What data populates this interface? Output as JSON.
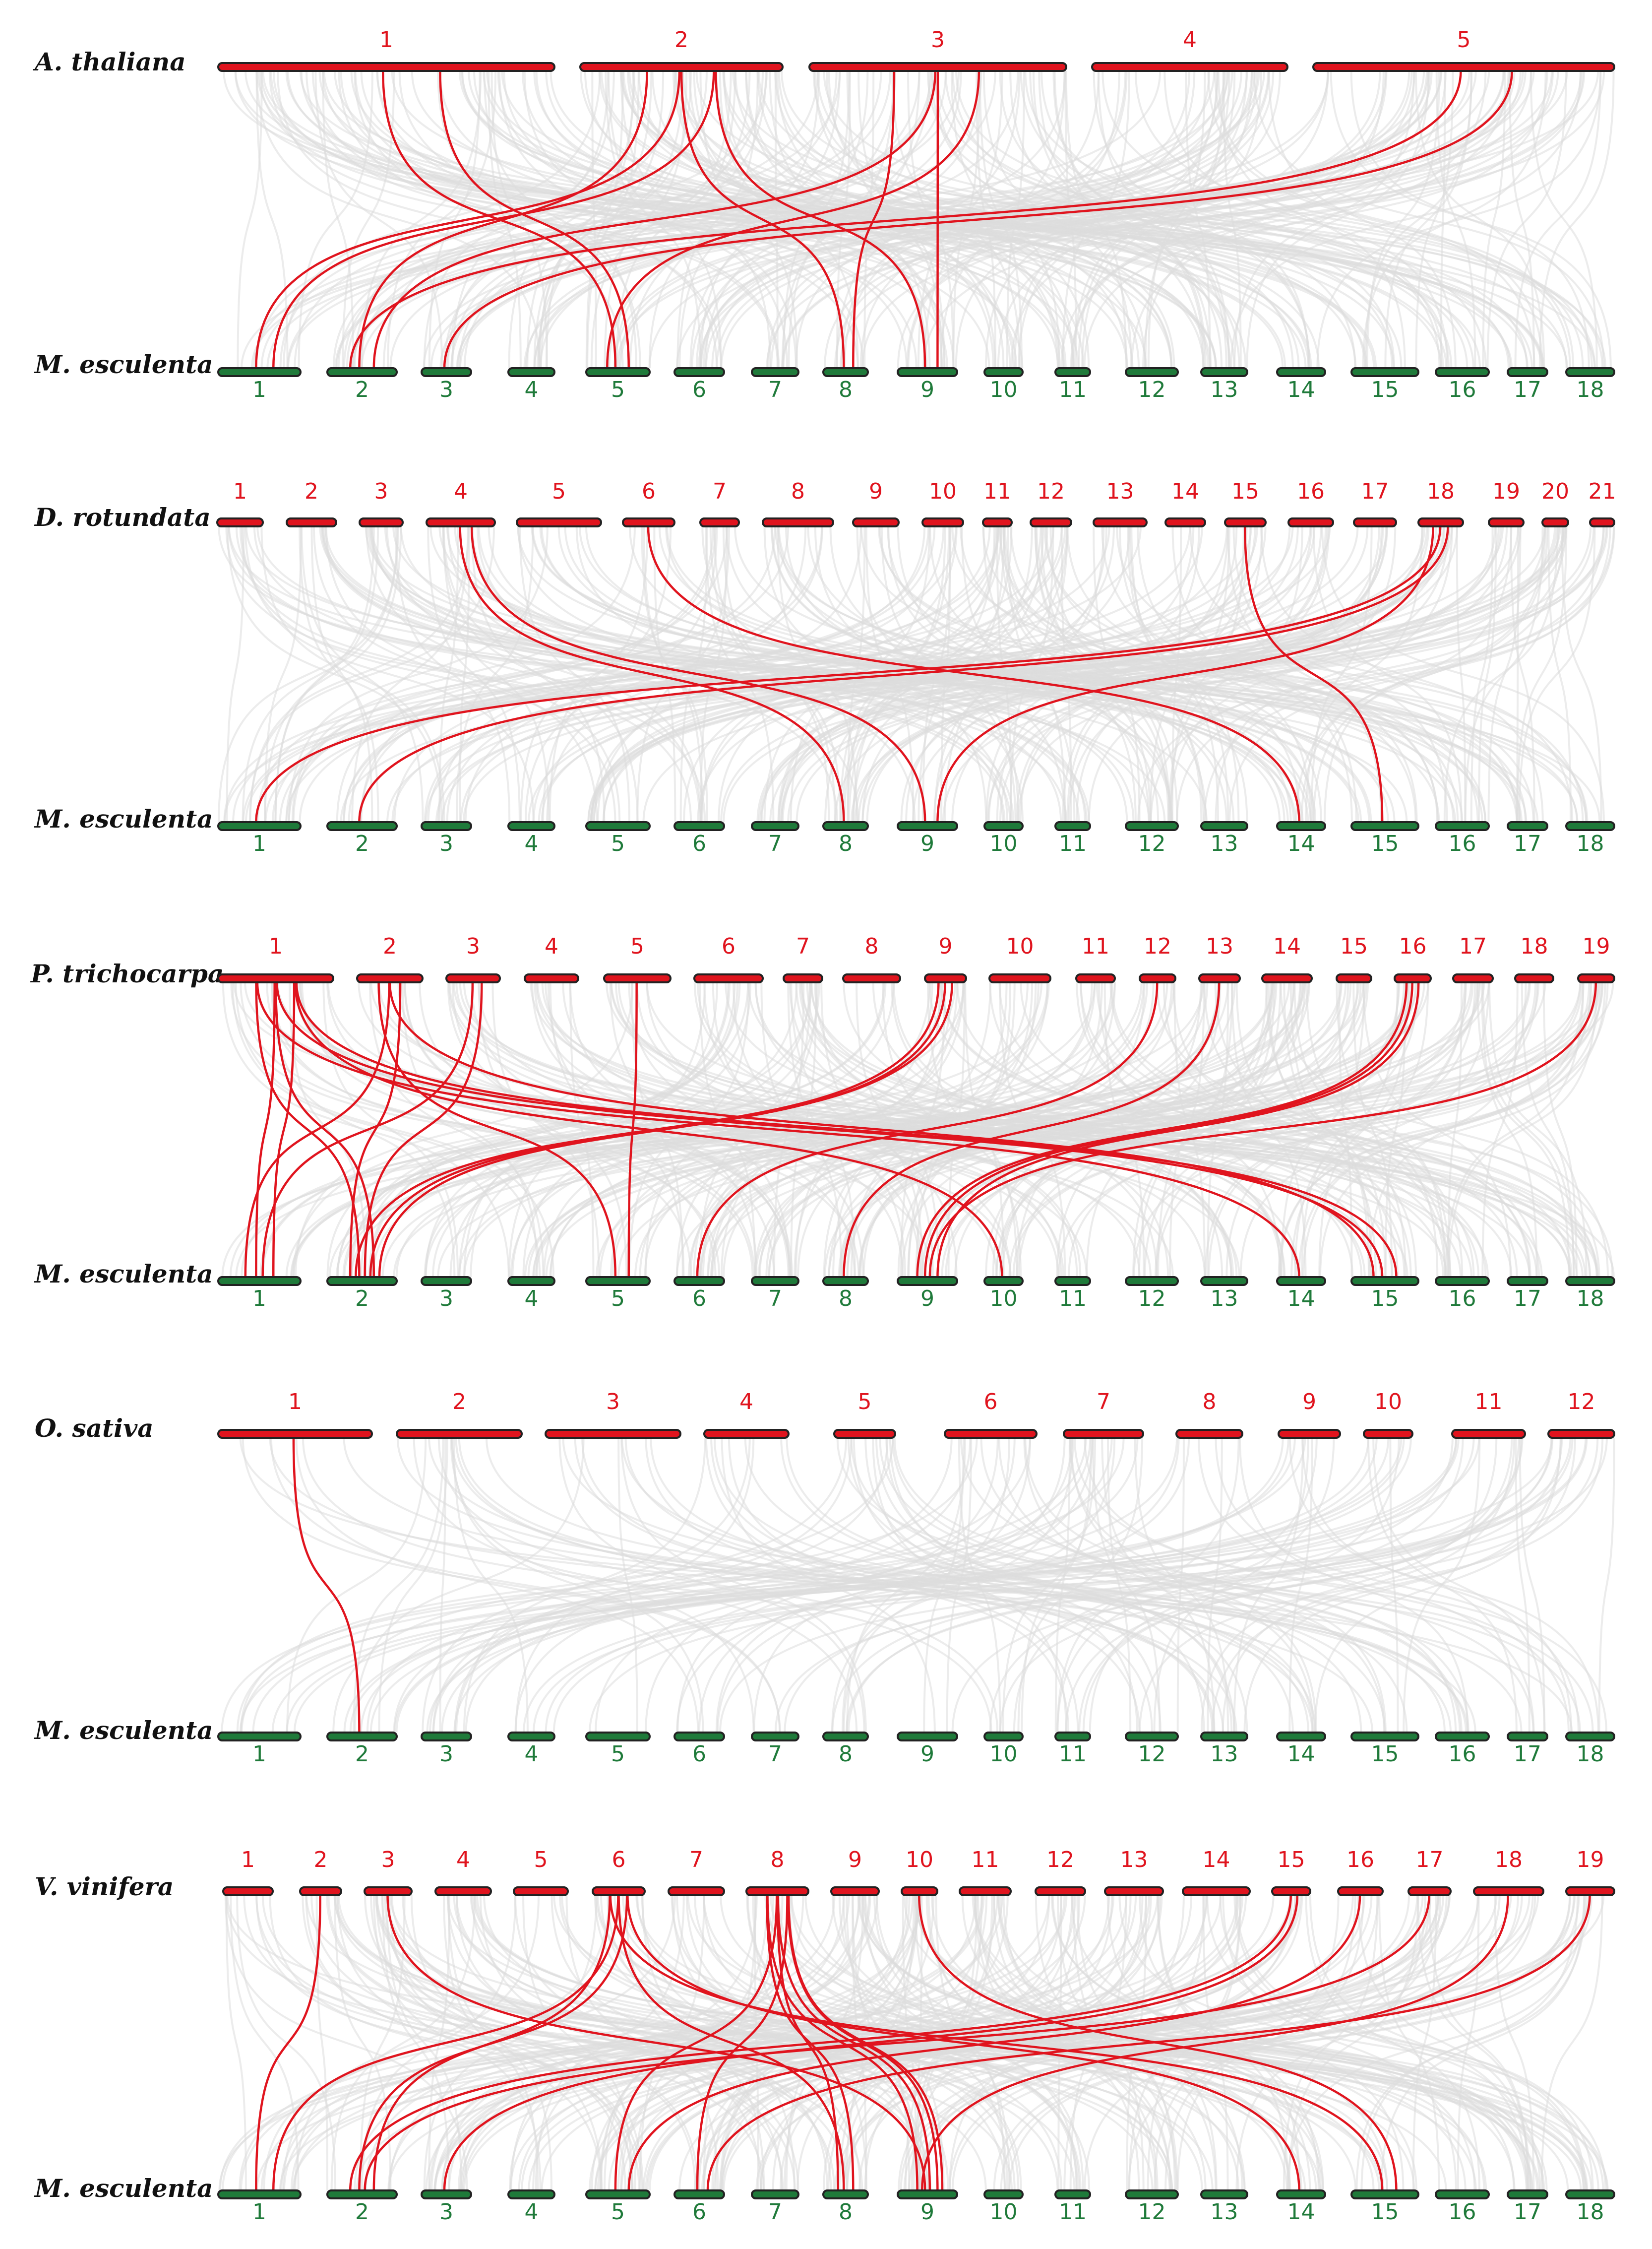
{
  "colors": {
    "top_genome": "#e0141e",
    "bottom_genome": "#1f7a3a",
    "background_links": "#dcdcdc",
    "highlight_links": "#e0141e"
  },
  "panels": [
    {
      "id": "athaliana",
      "top_species": "A. thaliana",
      "bottom_species": "M. esculenta",
      "top_chromosomes": [
        "1",
        "2",
        "3",
        "4",
        "5"
      ],
      "bottom_chromosomes": [
        "1",
        "2",
        "3",
        "4",
        "5",
        "6",
        "7",
        "8",
        "9",
        "10",
        "11",
        "12",
        "13",
        "14",
        "15",
        "16",
        "17",
        "18"
      ],
      "highlighted_links": [
        {
          "top": "1",
          "bottom": "5"
        },
        {
          "top": "1",
          "bottom": "5"
        },
        {
          "top": "2",
          "bottom": "1"
        },
        {
          "top": "2",
          "bottom": "1"
        },
        {
          "top": "2",
          "bottom": "2"
        },
        {
          "top": "2",
          "bottom": "8"
        },
        {
          "top": "2",
          "bottom": "9"
        },
        {
          "top": "3",
          "bottom": "2"
        },
        {
          "top": "3",
          "bottom": "5"
        },
        {
          "top": "3",
          "bottom": "8"
        },
        {
          "top": "3",
          "bottom": "9"
        },
        {
          "top": "5",
          "bottom": "2"
        },
        {
          "top": "5",
          "bottom": "3"
        }
      ]
    },
    {
      "id": "drotundata",
      "top_species": "D. rotundata",
      "bottom_species": "M. esculenta",
      "top_chromosomes": [
        "1",
        "2",
        "3",
        "4",
        "5",
        "6",
        "7",
        "8",
        "9",
        "10",
        "11",
        "12",
        "13",
        "14",
        "15",
        "16",
        "17",
        "18",
        "19",
        "20",
        "21"
      ],
      "bottom_chromosomes": [
        "1",
        "2",
        "3",
        "4",
        "5",
        "6",
        "7",
        "8",
        "9",
        "10",
        "11",
        "12",
        "13",
        "14",
        "15",
        "16",
        "17",
        "18"
      ],
      "highlighted_links": [
        {
          "top": "4",
          "bottom": "8"
        },
        {
          "top": "4",
          "bottom": "9"
        },
        {
          "top": "6",
          "bottom": "14"
        },
        {
          "top": "15",
          "bottom": "15"
        },
        {
          "top": "18",
          "bottom": "1"
        },
        {
          "top": "18",
          "bottom": "2"
        },
        {
          "top": "18",
          "bottom": "9"
        }
      ]
    },
    {
      "id": "ptrichocarpa",
      "top_species": "P. trichocarpa",
      "bottom_species": "M. esculenta",
      "top_chromosomes": [
        "1",
        "2",
        "3",
        "4",
        "5",
        "6",
        "7",
        "8",
        "9",
        "10",
        "11",
        "12",
        "13",
        "14",
        "15",
        "16",
        "17",
        "18",
        "19"
      ],
      "bottom_chromosomes": [
        "1",
        "2",
        "3",
        "4",
        "5",
        "6",
        "7",
        "8",
        "9",
        "10",
        "11",
        "12",
        "13",
        "14",
        "15",
        "16",
        "17",
        "18"
      ],
      "highlighted_links": [
        {
          "top": "1",
          "bottom": "1"
        },
        {
          "top": "1",
          "bottom": "1"
        },
        {
          "top": "1",
          "bottom": "2"
        },
        {
          "top": "1",
          "bottom": "2"
        },
        {
          "top": "1",
          "bottom": "10"
        },
        {
          "top": "1",
          "bottom": "14"
        },
        {
          "top": "1",
          "bottom": "15"
        },
        {
          "top": "1",
          "bottom": "15"
        },
        {
          "top": "2",
          "bottom": "1"
        },
        {
          "top": "2",
          "bottom": "2"
        },
        {
          "top": "2",
          "bottom": "5"
        },
        {
          "top": "2",
          "bottom": "15"
        },
        {
          "top": "3",
          "bottom": "1"
        },
        {
          "top": "3",
          "bottom": "2"
        },
        {
          "top": "5",
          "bottom": "5"
        },
        {
          "top": "9",
          "bottom": "2"
        },
        {
          "top": "9",
          "bottom": "2"
        },
        {
          "top": "9",
          "bottom": "2"
        },
        {
          "top": "12",
          "bottom": "6"
        },
        {
          "top": "13",
          "bottom": "8"
        },
        {
          "top": "16",
          "bottom": "9"
        },
        {
          "top": "16",
          "bottom": "9"
        },
        {
          "top": "16",
          "bottom": "9"
        },
        {
          "top": "19",
          "bottom": "9"
        }
      ]
    },
    {
      "id": "osativa",
      "top_species": "O. sativa",
      "bottom_species": "M. esculenta",
      "top_chromosomes": [
        "1",
        "2",
        "3",
        "4",
        "5",
        "6",
        "7",
        "8",
        "9",
        "10",
        "11",
        "12"
      ],
      "bottom_chromosomes": [
        "1",
        "2",
        "3",
        "4",
        "5",
        "6",
        "7",
        "8",
        "9",
        "10",
        "11",
        "12",
        "13",
        "14",
        "15",
        "16",
        "17",
        "18"
      ],
      "highlighted_links": [
        {
          "top": "1",
          "bottom": "2"
        }
      ]
    },
    {
      "id": "vvinifera",
      "top_species": "V. vinifera",
      "bottom_species": "M. esculenta",
      "top_chromosomes": [
        "1",
        "2",
        "3",
        "4",
        "5",
        "6",
        "7",
        "8",
        "9",
        "10",
        "11",
        "12",
        "13",
        "14",
        "15",
        "16",
        "17",
        "18",
        "19"
      ],
      "bottom_chromosomes": [
        "1",
        "2",
        "3",
        "4",
        "5",
        "6",
        "7",
        "8",
        "9",
        "10",
        "11",
        "12",
        "13",
        "14",
        "15",
        "16",
        "17",
        "18"
      ],
      "highlighted_links": [
        {
          "top": "2",
          "bottom": "1"
        },
        {
          "top": "3",
          "bottom": "9"
        },
        {
          "top": "6",
          "bottom": "1"
        },
        {
          "top": "6",
          "bottom": "2"
        },
        {
          "top": "6",
          "bottom": "2"
        },
        {
          "top": "6",
          "bottom": "8"
        },
        {
          "top": "6",
          "bottom": "14"
        },
        {
          "top": "6",
          "bottom": "15"
        },
        {
          "top": "8",
          "bottom": "5"
        },
        {
          "top": "8",
          "bottom": "6"
        },
        {
          "top": "8",
          "bottom": "8"
        },
        {
          "top": "8",
          "bottom": "8"
        },
        {
          "top": "8",
          "bottom": "9"
        },
        {
          "top": "8",
          "bottom": "9"
        },
        {
          "top": "8",
          "bottom": "9"
        },
        {
          "top": "8",
          "bottom": "9"
        },
        {
          "top": "10",
          "bottom": "15"
        },
        {
          "top": "15",
          "bottom": "2"
        },
        {
          "top": "15",
          "bottom": "3"
        },
        {
          "top": "16",
          "bottom": "5"
        },
        {
          "top": "17",
          "bottom": "2"
        },
        {
          "top": "18",
          "bottom": "9"
        },
        {
          "top": "19",
          "bottom": "6"
        }
      ]
    }
  ]
}
